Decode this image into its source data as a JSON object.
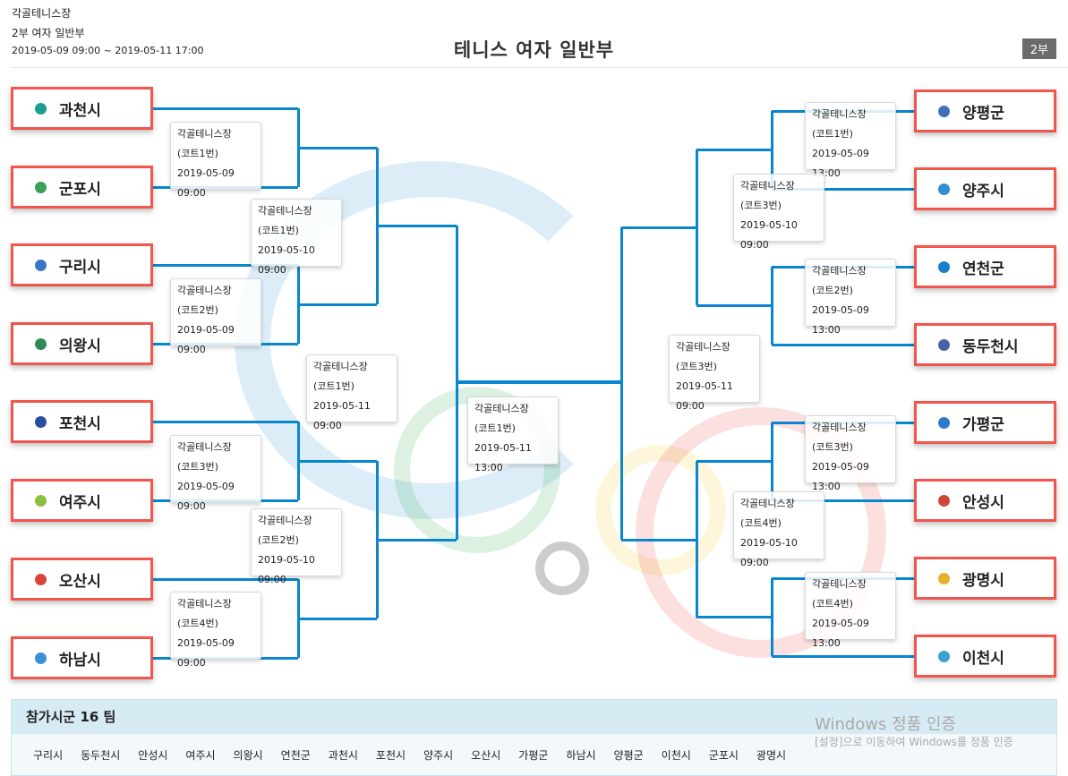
{
  "header": {
    "venue": "각골테니스장",
    "division": "2부 여자 일반부",
    "period": "2019-05-09 09:00 ~ 2019-05-11 17:00",
    "title": "테니스 여자 일반부",
    "badge": "2부"
  },
  "bracket": {
    "left_teams": [
      {
        "name": "과천시",
        "logo": "gwacheon-logo",
        "color": "#1a9e8f"
      },
      {
        "name": "군포시",
        "logo": "gunpo-logo",
        "color": "#3aa15a"
      },
      {
        "name": "구리시",
        "logo": "guri-logo",
        "color": "#3b78c4"
      },
      {
        "name": "의왕시",
        "logo": "uiwang-logo",
        "color": "#2e8b57"
      },
      {
        "name": "포천시",
        "logo": "pocheon-logo",
        "color": "#2a4f9e"
      },
      {
        "name": "여주시",
        "logo": "yeoju-logo",
        "color": "#8cbf3f"
      },
      {
        "name": "오산시",
        "logo": "osan-logo",
        "color": "#d9443a"
      },
      {
        "name": "하남시",
        "logo": "hanam-logo",
        "color": "#3a8fd9"
      }
    ],
    "right_teams": [
      {
        "name": "양평군",
        "logo": "yangpyeong-logo",
        "color": "#3f6fb5"
      },
      {
        "name": "양주시",
        "logo": "yangju-logo",
        "color": "#2f8fd0"
      },
      {
        "name": "연천군",
        "logo": "yeoncheon-logo",
        "color": "#1d7fc4"
      },
      {
        "name": "동두천시",
        "logo": "dongducheon-logo",
        "color": "#4b5fa8"
      },
      {
        "name": "가평군",
        "logo": "gapyeong-logo",
        "color": "#2b7ad0"
      },
      {
        "name": "안성시",
        "logo": "anseong-logo",
        "color": "#d0473a"
      },
      {
        "name": "광명시",
        "logo": "gwangmyeong-logo",
        "color": "#e2b22a"
      },
      {
        "name": "이천시",
        "logo": "icheon-logo",
        "color": "#3aa1d0"
      }
    ],
    "matches": [
      {
        "venue": "각골테니스장",
        "court": "(코트1번)",
        "time": "2019-05-09 09:00"
      },
      {
        "venue": "각골테니스장",
        "court": "(코트2번)",
        "time": "2019-05-09 09:00"
      },
      {
        "venue": "각골테니스장",
        "court": "(코트3번)",
        "time": "2019-05-09 09:00"
      },
      {
        "venue": "각골테니스장",
        "court": "(코트4번)",
        "time": "2019-05-09 09:00"
      },
      {
        "venue": "각골테니스장",
        "court": "(코트1번)",
        "time": "2019-05-10 09:00"
      },
      {
        "venue": "각골테니스장",
        "court": "(코트2번)",
        "time": "2019-05-10 09:00"
      },
      {
        "venue": "각골테니스장",
        "court": "(코트1번)",
        "time": "2019-05-11 09:00"
      },
      {
        "venue": "각골테니스장",
        "court": "(코트1번)",
        "time": "2019-05-11 13:00"
      },
      {
        "venue": "각골테니스장",
        "court": "(코트1번)",
        "time": "2019-05-09 13:00"
      },
      {
        "venue": "각골테니스장",
        "court": "(코트2번)",
        "time": "2019-05-09 13:00"
      },
      {
        "venue": "각골테니스장",
        "court": "(코트3번)",
        "time": "2019-05-09 13:00"
      },
      {
        "venue": "각골테니스장",
        "court": "(코트4번)",
        "time": "2019-05-09 13:00"
      },
      {
        "venue": "각골테니스장",
        "court": "(코트3번)",
        "time": "2019-05-10 09:00"
      },
      {
        "venue": "각골테니스장",
        "court": "(코트4번)",
        "time": "2019-05-10 09:00"
      },
      {
        "venue": "각골테니스장",
        "court": "(코트3번)",
        "time": "2019-05-11 09:00"
      }
    ]
  },
  "footer": {
    "label": "참가시군",
    "count": "16",
    "unit": "팀",
    "teams": [
      "구리시",
      "동두천시",
      "안성시",
      "여주시",
      "의왕시",
      "연천군",
      "과천시",
      "포천시",
      "양주시",
      "오산시",
      "가평군",
      "하남시",
      "양평군",
      "이천시",
      "군포시",
      "광명시"
    ]
  },
  "activation": {
    "title": "Windows 정품 인증",
    "message": "[설정]으로 이동하여 Windows를 정품 인증"
  },
  "colors": {
    "line": "#0a86cf",
    "team_border": "#f2554c",
    "badge": "#6b6b6b"
  }
}
